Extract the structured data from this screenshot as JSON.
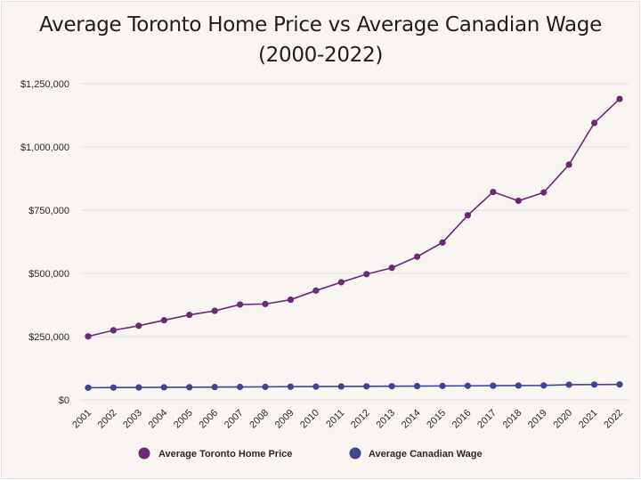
{
  "chart_data": {
    "type": "line",
    "title": "Average Toronto Home Price vs Average Canadian Wage",
    "subtitle": "(2000-2022)",
    "xlabel": "",
    "ylabel": "",
    "categories": [
      "2001",
      "2002",
      "2003",
      "2004",
      "2005",
      "2006",
      "2007",
      "2008",
      "2009",
      "2010",
      "2011",
      "2012",
      "2013",
      "2014",
      "2015",
      "2016",
      "2017",
      "2018",
      "2019",
      "2020",
      "2021",
      "2022"
    ],
    "ylim": [
      0,
      1250000
    ],
    "yticks": [
      0,
      250000,
      500000,
      750000,
      1000000,
      1250000
    ],
    "ytick_labels": [
      "$0",
      "$250,000",
      "$500,000",
      "$750,000",
      "$1,000,000",
      "$1,250,000"
    ],
    "grid": true,
    "legend_position": "bottom",
    "series": [
      {
        "name": "Average Toronto Home Price",
        "color": "#6b2a74",
        "values": [
          251000,
          275000,
          293000,
          315000,
          336000,
          352000,
          377000,
          379000,
          396000,
          432000,
          465000,
          497000,
          522000,
          566000,
          622000,
          730000,
          822000,
          787000,
          820000,
          930000,
          1095000,
          1190000
        ]
      },
      {
        "name": "Average Canadian Wage",
        "color": "#3f4591",
        "values": [
          48000,
          48500,
          49000,
          49500,
          50000,
          50500,
          51000,
          51500,
          52000,
          52500,
          53000,
          53500,
          54000,
          54500,
          55000,
          55500,
          56000,
          56500,
          57000,
          60000,
          60500,
          61000
        ]
      }
    ]
  }
}
